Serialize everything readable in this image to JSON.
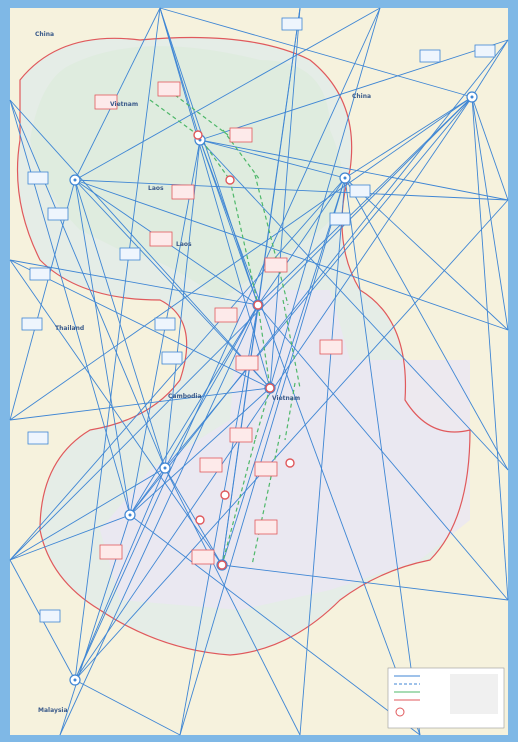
{
  "map": {
    "labels": [
      "China",
      "China",
      "Vietnam",
      "Laos",
      "Laos",
      "Thailand",
      "Cambodia",
      "Vietnam",
      "Malaysia"
    ]
  }
}
